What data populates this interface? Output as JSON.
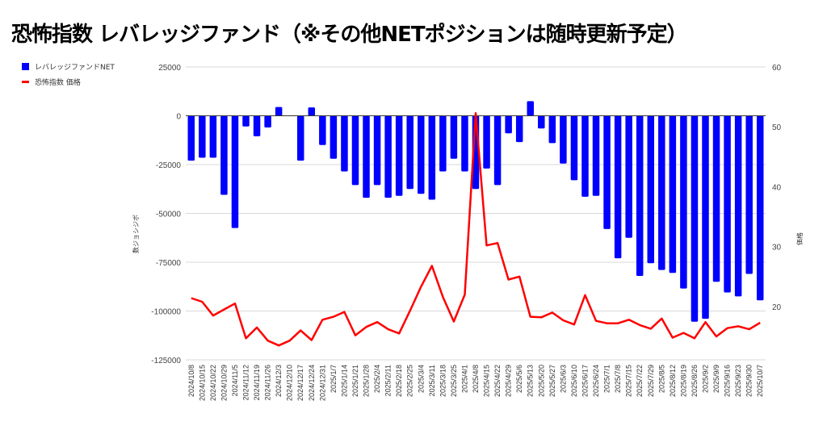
{
  "title": "恐怖指数 レバレッジファンド（※その他NETポジションは随時更新予定）",
  "chart_data": {
    "type": "bar+line",
    "title": "恐怖指数 レバレッジファンド（※その他NETポジションは随時更新予定）",
    "legend_position": "top-left",
    "legend": [
      "レバレッジファンドNET",
      "恐怖指数 価格"
    ],
    "y_left_label": "数ジョシジボ",
    "y_right_label": "価格",
    "y_left_ticks": [
      25000,
      0,
      -25000,
      -50000,
      -75000,
      -100000,
      -125000
    ],
    "y_right_ticks": [
      60,
      50,
      40,
      30,
      20
    ],
    "ylim_left": [
      -125000,
      25000
    ],
    "ylim_right": [
      11.1,
      60
    ],
    "grid": true,
    "colors": {
      "bar": "#0000ff",
      "line": "#ff0000"
    },
    "categories": [
      "2024/10/8",
      "2024/10/15",
      "2024/10/22",
      "2024/10/29",
      "2024/11/5",
      "2024/11/12",
      "2024/11/19",
      "2024/11/26",
      "2024/12/3",
      "2024/12/10",
      "2024/12/17",
      "2024/12/24",
      "2024/12/31",
      "2025/1/7",
      "2025/1/14",
      "2025/1/21",
      "2025/1/28",
      "2025/2/4",
      "2025/2/11",
      "2025/2/18",
      "2025/2/25",
      "2025/3/4",
      "2025/3/11",
      "2025/3/18",
      "2025/3/25",
      "2025/4/1",
      "2025/4/8",
      "2025/4/15",
      "2025/4/22",
      "2025/4/29",
      "2025/5/6",
      "2025/5/13",
      "2025/5/20",
      "2025/5/27",
      "2025/6/3",
      "2025/6/10",
      "2025/6/17",
      "2025/6/24",
      "2025/7/1",
      "2025/7/8",
      "2025/7/15",
      "2025/7/22",
      "2025/7/29",
      "2025/8/5",
      "2025/8/12",
      "2025/8/19",
      "2025/8/26",
      "2025/9/2",
      "2025/9/9",
      "2025/9/16",
      "2025/9/23",
      "2025/9/30",
      "2025/10/7"
    ],
    "series": [
      {
        "name": "レバレッジファンドNET",
        "type": "bar",
        "axis": "left",
        "values": [
          -23000,
          -21500,
          -21500,
          -40500,
          -57500,
          -5500,
          -10500,
          -6000,
          4500,
          null,
          -23000,
          4300,
          -15000,
          -22000,
          -28500,
          -35500,
          -42000,
          -35500,
          -42000,
          -41000,
          -37500,
          -40000,
          -43000,
          -28500,
          -22000,
          -28500,
          -37500,
          -27000,
          -35500,
          -9000,
          -13500,
          7500,
          -6500,
          -14000,
          -24500,
          -33000,
          -41500,
          -41000,
          -58000,
          -73000,
          -62500,
          -82000,
          -75500,
          -79000,
          -80500,
          -88500,
          -105500,
          -104000,
          -85000,
          -90500,
          -92500,
          -81000,
          -94500
        ]
      },
      {
        "name": "恐怖指数 価格",
        "type": "line",
        "axis": "right",
        "values": [
          21.4,
          20.8,
          18.5,
          19.5,
          20.5,
          14.7,
          16.5,
          14.3,
          13.5,
          14.3,
          16.0,
          14.4,
          17.8,
          18.3,
          19.1,
          15.2,
          16.6,
          17.4,
          16.2,
          15.5,
          19.3,
          23.3,
          26.8,
          21.6,
          17.5,
          22.0,
          52.3,
          30.2,
          30.6,
          24.5,
          25.0,
          18.3,
          18.2,
          19.0,
          17.7,
          17.0,
          21.9,
          17.6,
          17.2,
          17.2,
          17.8,
          16.9,
          16.3,
          18.0,
          14.8,
          15.6,
          14.7,
          17.4,
          15.0,
          16.4,
          16.7,
          16.2,
          17.3
        ]
      }
    ]
  }
}
